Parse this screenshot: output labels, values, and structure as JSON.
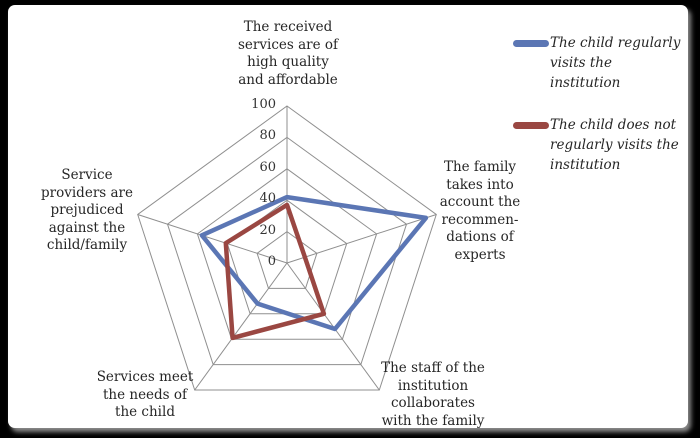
{
  "window": {
    "background": "#000000",
    "panel_background": "#ffffff"
  },
  "chart_data": {
    "type": "radar",
    "title": "",
    "rmax": 100,
    "ticks": [
      0,
      20,
      40,
      60,
      80,
      100
    ],
    "grid_on": true,
    "grid_color": "#8f8f8f",
    "legend_position": "top-right",
    "axes": [
      {
        "id": "top",
        "label": "The received\nservices are of\nhigh quality\nand affordable"
      },
      {
        "id": "right",
        "label": "The family\ntakes into\naccount the\nrecommen-\ndations of\nexperts"
      },
      {
        "id": "bottom-right",
        "label": "The staff of the\ninstitution\ncollaborates\nwith the family"
      },
      {
        "id": "bottom-left",
        "label": "Services meet\nthe needs of\nthe child"
      },
      {
        "id": "left",
        "label": "Service\nproviders are\nprejudiced\nagainst the\nchild/family"
      }
    ],
    "series": [
      {
        "name": "The child regularly visits the institution",
        "color": "#5B76B4",
        "values": [
          42,
          93,
          52,
          32,
          57
        ]
      },
      {
        "name": "The child does not regularly visits the institution",
        "color": "#9A4742",
        "values": [
          37,
          12,
          40,
          59,
          41
        ]
      }
    ]
  },
  "legend": {
    "items": [
      {
        "label": "The child regularly\nvisits the\ninstitution",
        "color": "#5B76B4"
      },
      {
        "label": "The child does not\nregularly visits the\ninstitution",
        "color": "#9A4742"
      }
    ]
  }
}
